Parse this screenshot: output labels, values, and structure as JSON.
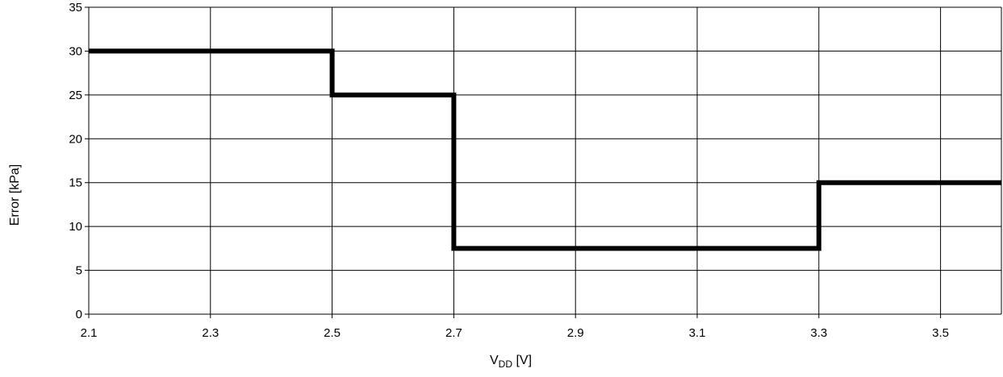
{
  "chart_data": {
    "type": "line",
    "step": true,
    "xlabel": {
      "main": "V",
      "sub": "DD",
      "unit": " [V]"
    },
    "ylabel": "Error [kPa]",
    "xlim": [
      2.1,
      3.6
    ],
    "ylim": [
      0,
      35
    ],
    "x_ticks": [
      "2.1",
      "2.3",
      "2.5",
      "2.7",
      "2.9",
      "3.1",
      "3.3",
      "3.5"
    ],
    "y_ticks": [
      "0",
      "5",
      "10",
      "15",
      "20",
      "25",
      "30",
      "35"
    ],
    "grid": true,
    "legend": "none",
    "series": [
      {
        "color": "#000000",
        "x": [
          2.1,
          2.5,
          2.5,
          2.7,
          2.7,
          3.3,
          3.3,
          3.6
        ],
        "y": [
          30,
          30,
          25,
          25,
          7.5,
          7.5,
          15,
          15
        ]
      }
    ]
  }
}
